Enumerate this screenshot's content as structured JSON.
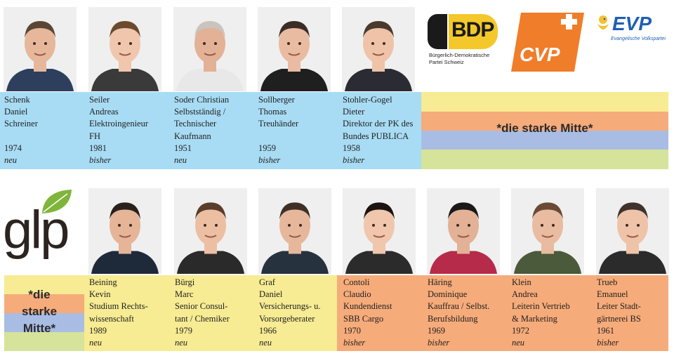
{
  "colors": {
    "blue": "#a8dcf4",
    "yellow": "#f7eb93",
    "orange": "#f6ab7a",
    "green": "#d6e39a",
    "periwinkle": "#a9bde4",
    "bdp_yellow": "#f4c82a",
    "cvp_orange": "#f07d2a",
    "evp_blue": "#1f5fb5",
    "glp_green": "#7fb53a"
  },
  "top_candidates": [
    {
      "last": "Schenk",
      "first": "Daniel",
      "job": [
        "Schreiner"
      ],
      "year": "1974",
      "status": "neu"
    },
    {
      "last": "Seiler",
      "first": "Andreas",
      "job": [
        "Elektroingenieur",
        "FH"
      ],
      "year": "1981",
      "status": "bisher"
    },
    {
      "last": "Soder Christian",
      "first": "Selbstständig /",
      "job": [
        "Technischer",
        "Kaufmann"
      ],
      "year": "1951",
      "status": "neu"
    },
    {
      "last": "Sollberger",
      "first": "Thomas",
      "job": [
        "Treuhänder"
      ],
      "year": "1959",
      "status": "bisher"
    },
    {
      "last": "Stohler-Gogel",
      "first": "Dieter",
      "job": [
        "Direktor der PK des",
        "Bundes PUBLICA"
      ],
      "year": "1958",
      "status": "bisher"
    }
  ],
  "bottom_candidates": [
    {
      "last": "Beining",
      "first": "Kevin",
      "job": [
        "Studium Rechts-",
        "wissenschaft"
      ],
      "year": "1989",
      "status": "neu"
    },
    {
      "last": "Bürgi",
      "first": "Marc",
      "job": [
        "Senior Consul-",
        "tant / Chemiker"
      ],
      "year": "1979",
      "status": "neu"
    },
    {
      "last": "Graf",
      "first": "Daniel",
      "job": [
        "Versicherungs- u.",
        "Vorsorgeberater"
      ],
      "year": "1966",
      "status": "neu"
    },
    {
      "last": "Contoli",
      "first": "Claudio",
      "job": [
        "Kundendienst",
        "SBB Cargo"
      ],
      "year": "1970",
      "status": "bisher"
    },
    {
      "last": "Häring",
      "first": "Dominique",
      "job": [
        "Kauffrau / Selbst.",
        "Berufsbildung"
      ],
      "year": "1969",
      "status": "bisher"
    },
    {
      "last": "Klein",
      "first": "Andrea",
      "job": [
        "Leiterin Vertrieb",
        "& Marketing"
      ],
      "year": "1972",
      "status": "neu"
    },
    {
      "last": "Trueb",
      "first": "Emanuel",
      "job": [
        "Leiter Stadt-",
        "gärtnerei BS"
      ],
      "year": "1961",
      "status": "bisher"
    }
  ],
  "logos": {
    "bdp": {
      "abbr": "BDP",
      "line1": "Bürgerlich-Demokratische",
      "line2": "Partei Schweiz"
    },
    "cvp": {
      "abbr": "CVP"
    },
    "evp": {
      "abbr": "EVP",
      "sub": "Evangelische Volkspartei"
    },
    "glp": {
      "abbr": "glp"
    }
  },
  "slogan_top": "*die starke Mitte*",
  "slogan_bottom": {
    "l1": "*die",
    "l2": "starke",
    "l3": "Mitte*"
  },
  "icons": [
    "person-photo",
    "leaf-icon",
    "swiss-cross-icon",
    "evp-bird-icon"
  ]
}
